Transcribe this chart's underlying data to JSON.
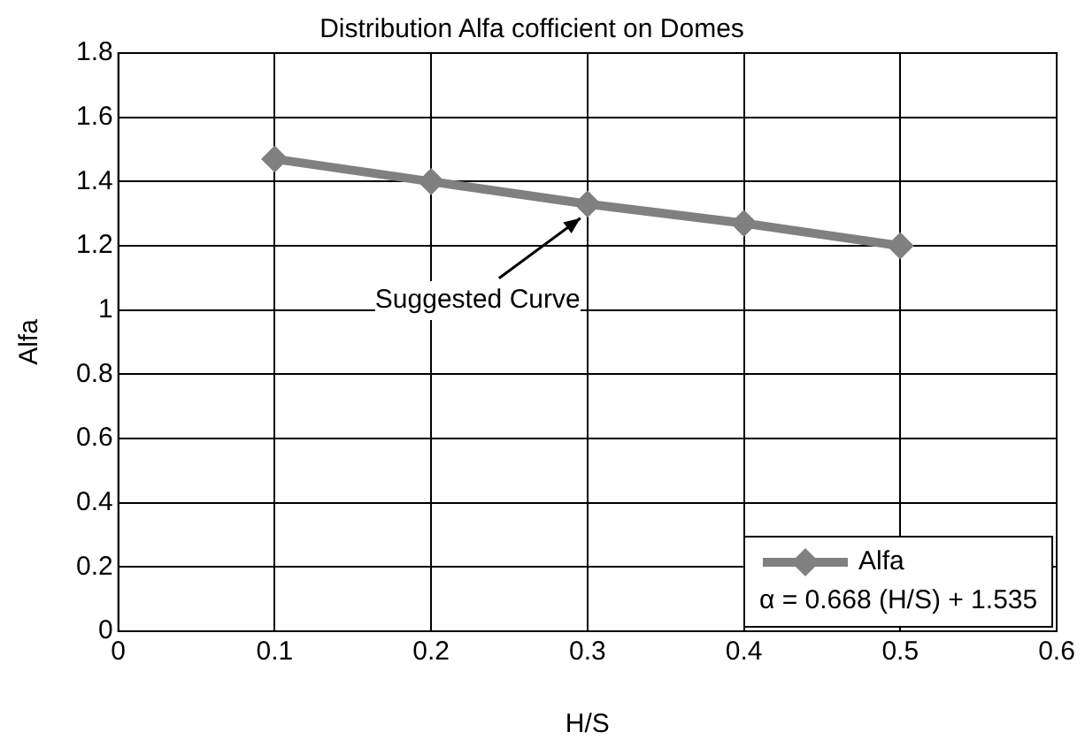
{
  "chart_data": {
    "type": "line",
    "title": "Distribution Alfa cofficient on Domes",
    "xlabel": "H/S",
    "ylabel": "Alfa",
    "x": [
      0.1,
      0.2,
      0.3,
      0.4,
      0.5
    ],
    "series": [
      {
        "name": "Alfa",
        "color": "#808080",
        "values": [
          1.47,
          1.4,
          1.33,
          1.27,
          1.2
        ]
      }
    ],
    "xlim": [
      0,
      0.6
    ],
    "xticks": [
      0,
      0.1,
      0.2,
      0.3,
      0.4,
      0.5,
      0.6
    ],
    "ylim": [
      0,
      1.8
    ],
    "yticks": [
      0,
      0.2,
      0.4,
      0.6,
      0.8,
      1,
      1.2,
      1.4,
      1.6,
      1.8
    ],
    "grid": true,
    "legend": "bottom right",
    "marker": "diamond",
    "line_style": "solid",
    "annotations": [
      {
        "text": "Suggested Curve",
        "x": 0.3,
        "y": 1.33
      },
      "α = 0.668 (H/S) + 1.535"
    ]
  }
}
